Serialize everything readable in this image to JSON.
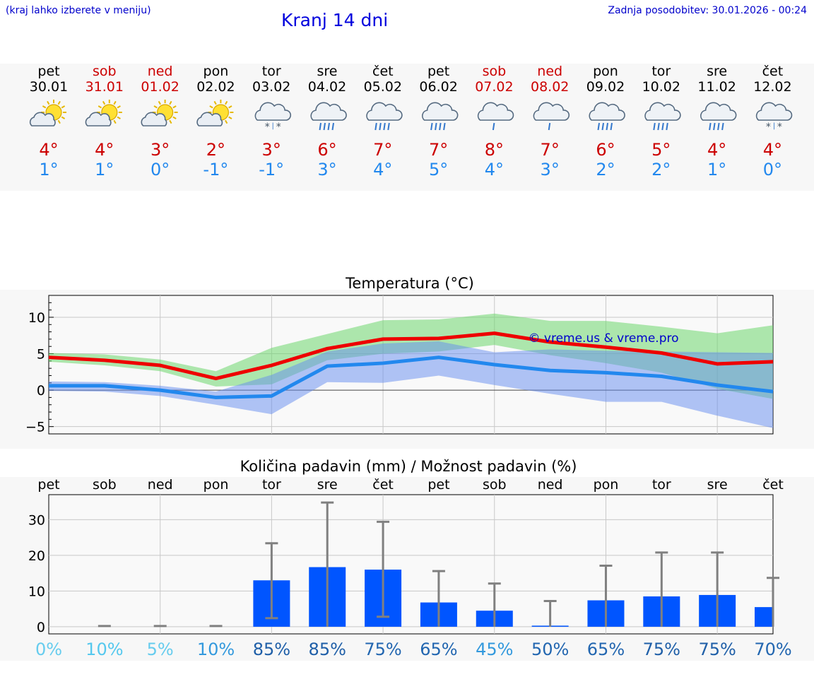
{
  "header": {
    "hint": "(kraj lahko izberete v meniju)",
    "title": "Kranj 14 dni",
    "updated": "Zadnja posodobitev: 30.01.2026 - 00:24"
  },
  "colors": {
    "weekday": "#000000",
    "weekend": "#cc0000",
    "tmax": "#cc0000",
    "tmin": "#2288ee",
    "temp_max_line": "#ee0000",
    "temp_min_line": "#2288ee",
    "precip_bar": "#0055ff",
    "error_bar": "#808080",
    "watermark": "#0000cc"
  },
  "days": [
    {
      "dow": "pet",
      "date": "30.01",
      "weekend": false,
      "icon": "sun-cloud-icon",
      "tmax": "4°",
      "tmin": "1°"
    },
    {
      "dow": "sob",
      "date": "31.01",
      "weekend": true,
      "icon": "sun-cloud-icon",
      "tmax": "4°",
      "tmin": "1°"
    },
    {
      "dow": "ned",
      "date": "01.02",
      "weekend": true,
      "icon": "sun-cloud-icon",
      "tmax": "3°",
      "tmin": "0°"
    },
    {
      "dow": "pon",
      "date": "02.02",
      "weekend": false,
      "icon": "sun-cloud-icon",
      "tmax": "2°",
      "tmin": "-1°"
    },
    {
      "dow": "tor",
      "date": "03.02",
      "weekend": false,
      "icon": "cloud-snow-icon",
      "tmax": "3°",
      "tmin": "-1°"
    },
    {
      "dow": "sre",
      "date": "04.02",
      "weekend": false,
      "icon": "cloud-rain-icon",
      "tmax": "6°",
      "tmin": "3°"
    },
    {
      "dow": "čet",
      "date": "05.02",
      "weekend": false,
      "icon": "cloud-rain-icon",
      "tmax": "7°",
      "tmin": "4°"
    },
    {
      "dow": "pet",
      "date": "06.02",
      "weekend": false,
      "icon": "cloud-rain-icon",
      "tmax": "7°",
      "tmin": "5°"
    },
    {
      "dow": "sob",
      "date": "07.02",
      "weekend": true,
      "icon": "cloud-light-rain-icon",
      "tmax": "8°",
      "tmin": "4°"
    },
    {
      "dow": "ned",
      "date": "08.02",
      "weekend": true,
      "icon": "cloud-light-rain-icon",
      "tmax": "7°",
      "tmin": "3°"
    },
    {
      "dow": "pon",
      "date": "09.02",
      "weekend": false,
      "icon": "cloud-rain-icon",
      "tmax": "6°",
      "tmin": "2°"
    },
    {
      "dow": "tor",
      "date": "10.02",
      "weekend": false,
      "icon": "cloud-rain-icon",
      "tmax": "5°",
      "tmin": "2°"
    },
    {
      "dow": "sre",
      "date": "11.02",
      "weekend": false,
      "icon": "cloud-rain-icon",
      "tmax": "4°",
      "tmin": "1°"
    },
    {
      "dow": "čet",
      "date": "12.02",
      "weekend": false,
      "icon": "cloud-snow-icon",
      "tmax": "4°",
      "tmin": "0°"
    }
  ],
  "chart_data": [
    {
      "type": "line",
      "title": "Temperatura (°C)",
      "watermark": "© vreme.us & vreme.pro",
      "x": [
        0,
        1,
        2,
        3,
        4,
        5,
        6,
        7,
        8,
        9,
        10,
        11,
        12,
        13
      ],
      "ylim": [
        -6,
        13
      ],
      "yticks": [
        10,
        5,
        0,
        -5
      ],
      "ytick_labels": [
        "10",
        "5",
        "0",
        "−5"
      ],
      "series": [
        {
          "name": "max",
          "values": [
            4.5,
            4.1,
            3.4,
            1.6,
            3.4,
            5.7,
            7.0,
            7.1,
            7.8,
            6.6,
            5.9,
            5.1,
            3.6,
            3.9
          ]
        },
        {
          "name": "min",
          "values": [
            0.6,
            0.6,
            0.0,
            -1.0,
            -0.8,
            3.3,
            3.7,
            4.5,
            3.5,
            2.7,
            2.4,
            1.9,
            0.7,
            -0.2
          ]
        }
      ],
      "bands": [
        {
          "name": "max-range",
          "upper": [
            5.1,
            4.9,
            4.2,
            2.6,
            5.8,
            7.7,
            9.6,
            9.7,
            10.5,
            9.5,
            9.5,
            8.7,
            7.8,
            8.9
          ],
          "lower": [
            3.9,
            3.4,
            2.6,
            0.5,
            0.8,
            4.1,
            5.0,
            5.3,
            6.2,
            4.8,
            3.7,
            2.4,
            0.2,
            -1.2
          ]
        },
        {
          "name": "min-range",
          "upper": [
            1.2,
            1.1,
            0.6,
            -0.2,
            2.1,
            5.3,
            6.4,
            6.7,
            5.2,
            5.6,
            5.4,
            5.3,
            5.2,
            5.1
          ],
          "lower": [
            -0.1,
            -0.2,
            -0.8,
            -2.0,
            -3.3,
            1.1,
            1.0,
            2.0,
            0.7,
            -0.5,
            -1.6,
            -1.6,
            -3.5,
            -5.2
          ]
        }
      ]
    },
    {
      "type": "bar",
      "title": "Količina padavin (mm) / Možnost padavin (%)",
      "categories": [
        "pet",
        "sob",
        "ned",
        "pon",
        "tor",
        "sre",
        "čet",
        "pet",
        "sob",
        "ned",
        "pon",
        "tor",
        "sre",
        "čet"
      ],
      "values": [
        0,
        0,
        0,
        0,
        13.0,
        16.7,
        16.0,
        6.8,
        4.5,
        0.3,
        7.4,
        8.5,
        8.9,
        5.5
      ],
      "error_high": [
        0,
        0.2,
        0.2,
        0.2,
        23.4,
        34.8,
        29.4,
        15.6,
        12.1,
        7.2,
        17.1,
        20.8,
        20.8,
        13.7
      ],
      "error_low": [
        0,
        0,
        0,
        0,
        2.4,
        0,
        2.8,
        0,
        0,
        0,
        0,
        0,
        0,
        0
      ],
      "probability": [
        "0%",
        "10%",
        "5%",
        "10%",
        "85%",
        "85%",
        "75%",
        "65%",
        "45%",
        "50%",
        "65%",
        "75%",
        "75%",
        "70%"
      ],
      "probability_colors": [
        "#66ccee",
        "#55c8ee",
        "#66ccee",
        "#3399dd",
        "#1f5fa8",
        "#1f5fa8",
        "#2266b0",
        "#2266b0",
        "#3399dd",
        "#2266b0",
        "#2266b0",
        "#1f5fa8",
        "#1f5fa8",
        "#2266b0"
      ],
      "ylim": [
        -2,
        37
      ],
      "yticks": [
        30,
        20,
        10,
        0
      ],
      "ytick_labels": [
        "30",
        "20",
        "10",
        "0"
      ]
    }
  ]
}
